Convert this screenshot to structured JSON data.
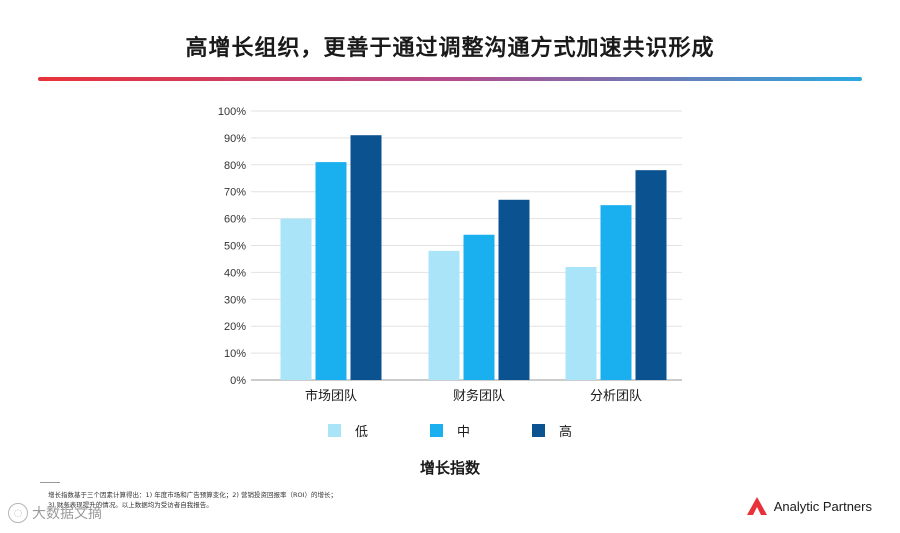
{
  "slide": {
    "title": "高增长组织，更善于通过调整沟通方式加速共识形成"
  },
  "chart_data": {
    "type": "bar",
    "categories": [
      "市场团队",
      "财务团队",
      "分析团队"
    ],
    "series": [
      {
        "name": "低",
        "values": [
          60,
          48,
          42
        ],
        "color": "#a9e4f8"
      },
      {
        "name": "中",
        "values": [
          81,
          54,
          65
        ],
        "color": "#1ab0ef"
      },
      {
        "name": "高",
        "values": [
          91,
          67,
          78
        ],
        "color": "#0b5291"
      }
    ],
    "y_ticks": [
      "0%",
      "10%",
      "20%",
      "30%",
      "40%",
      "50%",
      "60%",
      "70%",
      "80%",
      "90%",
      "100%"
    ],
    "ylim": [
      0,
      100
    ],
    "grid": true,
    "legend_position": "bottom",
    "xlabel": "增长指数"
  },
  "footnotes": [
    "增长指数基于三个因素计算得出：1) 年度市场和广告预算变化；2) 营销投资回报率（ROI）的增长；",
    "3) 财务表现提升的情况。以上数据均为受访者自我报告。"
  ],
  "watermark": {
    "text": "大数据文摘"
  },
  "brand": {
    "name": "Analytic Partners",
    "logo_icon": "analytic-partners-logo-icon",
    "logo_color": "#e8323a"
  }
}
